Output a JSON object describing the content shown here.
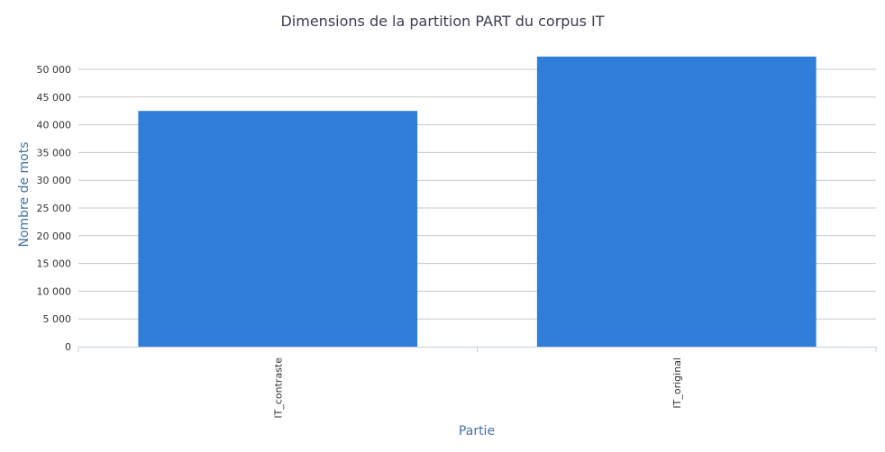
{
  "chart_data": {
    "type": "bar",
    "title": "Dimensions de la partition PART du corpus IT",
    "xlabel": "Partie",
    "ylabel": "Nombre de mots",
    "categories": [
      "IT_contraste",
      "IT_original"
    ],
    "values": [
      42500,
      52300
    ],
    "ylim": [
      0,
      50000
    ],
    "ytick_step": 5000,
    "yticks": [
      "0",
      "5 000",
      "10 000",
      "15 000",
      "20 000",
      "25 000",
      "30 000",
      "35 000",
      "40 000",
      "45 000",
      "50 000"
    ],
    "grid": true,
    "legend": "none",
    "bar_color": "#2f7ed8"
  }
}
